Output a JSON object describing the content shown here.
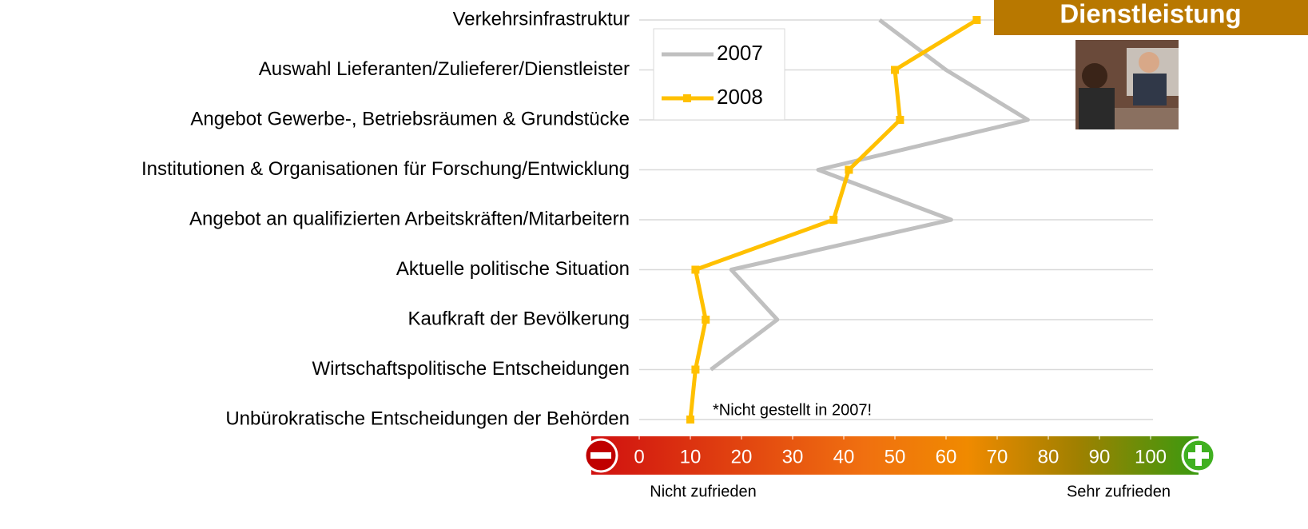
{
  "chart_data": {
    "type": "line",
    "badge": "Dienstleistung",
    "categories": [
      "Verkehrsinfrastruktur",
      "Auswahl Lieferanten/Zulieferer/Dienstleister",
      "Angebot Gewerbe-, Betriebsräumen & Grundstücke",
      "Institutionen & Organisationen für Forschung/Entwicklung",
      "Angebot an qualifizierten Arbeitskräften/Mitarbeitern",
      "Aktuelle politische Situation",
      "Kaufkraft der Bevölkerung",
      "Wirtschaftspolitische Entscheidungen",
      "Unbürokratische Entscheidungen der Behörden"
    ],
    "series": [
      {
        "name": "2007",
        "color": "#c0c0c0",
        "values": [
          47,
          60,
          76,
          35,
          61,
          18,
          27,
          14,
          null
        ]
      },
      {
        "name": "2008",
        "color": "#ffc000",
        "values": [
          66,
          50,
          51,
          41,
          38,
          11,
          13,
          11,
          10
        ]
      }
    ],
    "xlim": [
      0,
      100
    ],
    "xticks": [
      0,
      10,
      20,
      30,
      40,
      50,
      60,
      70,
      80,
      90,
      100
    ],
    "annotation": "*Nicht gestellt in 2007!",
    "x_low_label": "Nicht zufrieden",
    "x_high_label": "Sehr zufrieden"
  }
}
